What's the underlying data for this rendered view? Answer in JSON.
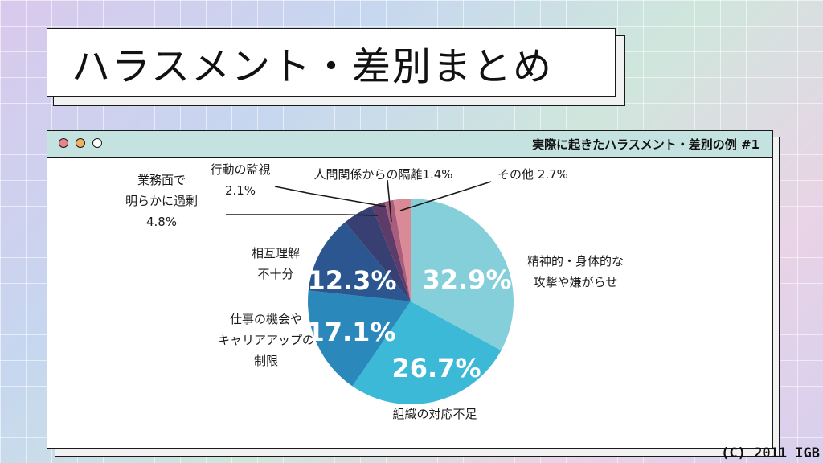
{
  "title": "ハラスメント・差別まとめ",
  "window": {
    "title": "実際に起きたハラスメント・差別の例 #1"
  },
  "copyright": "(C) 2011 IGB",
  "chart_data": {
    "type": "pie",
    "title": "",
    "unit": "%",
    "slices": [
      {
        "label": "精神的・身体的な攻撃や嫌がらせ",
        "lines": [
          "精神的・身体的な",
          "攻撃や嫌がらせ"
        ],
        "value": 32.9,
        "display": "32.9%",
        "color": "#85cfda"
      },
      {
        "label": "組織の対応不足",
        "lines": [
          "組織の対応不足"
        ],
        "value": 26.7,
        "display": "26.7%",
        "color": "#3db9d8"
      },
      {
        "label": "仕事の機会やキャリアアップの制限",
        "lines": [
          "仕事の機会や",
          "キャリアアップの",
          "制限"
        ],
        "value": 17.1,
        "display": "17.1%",
        "color": "#2a88bb"
      },
      {
        "label": "相互理解不十分",
        "lines": [
          "相互理解",
          "不十分"
        ],
        "value": 12.3,
        "display": "12.3%",
        "color": "#2c5690"
      },
      {
        "label": "業務面で明らかに過剰",
        "lines": [
          "業務面で",
          "明らかに過剰",
          "4.8%"
        ],
        "value": 4.8,
        "display": "",
        "color": "#383f73"
      },
      {
        "label": "行動の監視",
        "lines": [
          "行動の監視",
          "2.1%"
        ],
        "value": 2.1,
        "display": "",
        "color": "#5d3c6a"
      },
      {
        "label": "人間関係からの隔離",
        "lines": [
          "人間関係からの隔離1.4%"
        ],
        "value": 1.4,
        "display": "",
        "color": "#a95c7c"
      },
      {
        "label": "その他",
        "lines": [
          "その他 2.7%"
        ],
        "value": 2.7,
        "display": "",
        "color": "#d98a96"
      }
    ]
  }
}
